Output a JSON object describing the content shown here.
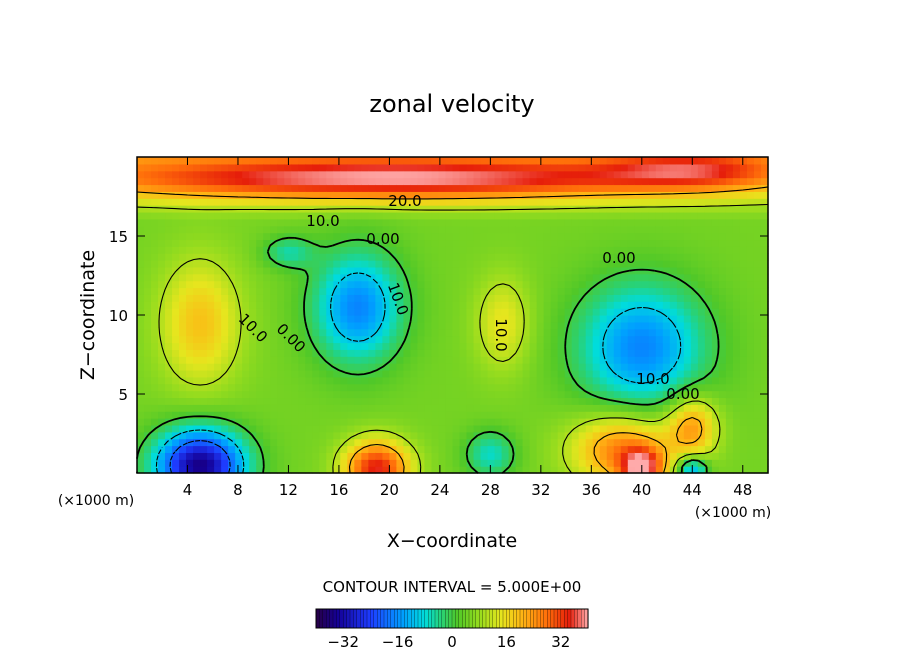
{
  "chart_data": {
    "type": "heatmap",
    "title": "zonal velocity",
    "xlabel": "X−coordinate",
    "ylabel": "Z−coordinate",
    "x_unit": "(×1000 m)",
    "x_unit_right": "(×1000 m)",
    "xlim": [
      0,
      50
    ],
    "ylim": [
      0,
      20
    ],
    "xticks": [
      "4",
      "8",
      "12",
      "16",
      "20",
      "24",
      "28",
      "32",
      "36",
      "40",
      "44",
      "48"
    ],
    "yticks": [
      "5",
      "10",
      "15"
    ],
    "contour_labels": [
      "20.0",
      "10.0",
      "0.00",
      "0.00",
      "10.0",
      "10.0",
      "0.00",
      "10.0",
      "10.0",
      "0.00"
    ],
    "contour_interval_text": "CONTOUR INTERVAL = 5.000E+00",
    "colorbar": {
      "min": -40,
      "max": 40,
      "ticks": [
        "−32",
        "−16",
        "0",
        "16",
        "32"
      ]
    },
    "grid": false,
    "features": [
      {
        "x": 20,
        "z": 18.6,
        "value": 26,
        "sx": 24,
        "sz": 1.3
      },
      {
        "x": 44,
        "z": 19.2,
        "value": 14,
        "sx": 7,
        "sz": 1.2
      },
      {
        "x": 5,
        "z": 9.5,
        "value": 14,
        "sx": 3.2,
        "sz": 4
      },
      {
        "x": 17.5,
        "z": 10.5,
        "value": -22,
        "sx": 3.5,
        "sz": 3.5
      },
      {
        "x": 40,
        "z": 8,
        "value": -22,
        "sx": 5,
        "sz": 4
      },
      {
        "x": 29,
        "z": 9.5,
        "value": 10,
        "sx": 2.2,
        "sz": 3
      },
      {
        "x": 5,
        "z": 0.5,
        "value": -40,
        "sx": 3.5,
        "sz": 2.3
      },
      {
        "x": 19,
        "z": 0.3,
        "value": 30,
        "sx": 2.6,
        "sz": 1.8
      },
      {
        "x": 28,
        "z": 1.2,
        "value": -12,
        "sx": 2,
        "sz": 1.5
      },
      {
        "x": 38.5,
        "z": 1.5,
        "value": 22,
        "sx": 4,
        "sz": 2.3
      },
      {
        "x": 44,
        "z": 3,
        "value": 18,
        "sx": 2,
        "sz": 2
      },
      {
        "x": 44,
        "z": 0.3,
        "value": -20,
        "sx": 1.2,
        "sz": 0.8
      },
      {
        "x": 40,
        "z": 0.3,
        "value": 26,
        "sx": 1.6,
        "sz": 1.2
      },
      {
        "x": 12,
        "z": 14,
        "value": -10,
        "sx": 2,
        "sz": 1
      }
    ]
  }
}
